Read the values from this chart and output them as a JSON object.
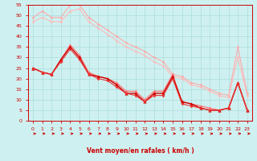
{
  "xlabel": "Vent moyen/en rafales ( km/h )",
  "background_color": "#cff0f0",
  "grid_color": "#aadddd",
  "xlim": [
    -0.5,
    23.5
  ],
  "ylim": [
    0,
    55
  ],
  "yticks": [
    0,
    5,
    10,
    15,
    20,
    25,
    30,
    35,
    40,
    45,
    50,
    55
  ],
  "xticks": [
    0,
    1,
    2,
    3,
    4,
    5,
    6,
    7,
    8,
    9,
    10,
    11,
    12,
    13,
    14,
    15,
    16,
    17,
    18,
    19,
    20,
    21,
    22,
    23
  ],
  "lines": [
    {
      "color": "#ffaaaa",
      "x": [
        0,
        1,
        2,
        3,
        4,
        5,
        6,
        7,
        8,
        9,
        10,
        11,
        12,
        13,
        14,
        15,
        16,
        17,
        18,
        19,
        20,
        21,
        22,
        23
      ],
      "y": [
        49,
        52,
        49,
        49,
        55,
        55,
        49,
        46,
        43,
        40,
        37,
        35,
        33,
        30,
        28,
        22,
        21,
        18,
        17,
        15,
        13,
        12,
        35,
        13
      ],
      "marker": "D",
      "markersize": 1.5,
      "linewidth": 0.8
    },
    {
      "color": "#ffbbbb",
      "x": [
        0,
        1,
        2,
        3,
        4,
        5,
        6,
        7,
        8,
        9,
        10,
        11,
        12,
        13,
        14,
        15,
        16,
        17,
        18,
        19,
        20,
        21,
        22,
        23
      ],
      "y": [
        47,
        49,
        47,
        47,
        52,
        53,
        47,
        44,
        41,
        38,
        35,
        33,
        31,
        28,
        26,
        21,
        20,
        17,
        16,
        14,
        12,
        11,
        30,
        12
      ],
      "marker": "D",
      "markersize": 1.5,
      "linewidth": 0.8
    },
    {
      "color": "#ff7777",
      "x": [
        0,
        1,
        2,
        3,
        4,
        5,
        6,
        7,
        8,
        9,
        10,
        11,
        12,
        13,
        14,
        15,
        16,
        17,
        18,
        19,
        20,
        21,
        22,
        23
      ],
      "y": [
        25,
        23,
        22,
        29,
        36,
        31,
        23,
        21,
        20,
        18,
        14,
        14,
        10,
        14,
        14,
        22,
        9,
        8,
        7,
        6,
        5,
        6,
        18,
        5
      ],
      "marker": "^",
      "markersize": 2.5,
      "linewidth": 0.9
    },
    {
      "color": "#cc0000",
      "x": [
        0,
        1,
        2,
        3,
        4,
        5,
        6,
        7,
        8,
        9,
        10,
        11,
        12,
        13,
        14,
        15,
        16,
        17,
        18,
        19,
        20,
        21,
        22,
        23
      ],
      "y": [
        25,
        23,
        22,
        29,
        35,
        30,
        22,
        21,
        20,
        17,
        13,
        13,
        9,
        13,
        13,
        21,
        9,
        8,
        6,
        5,
        5,
        6,
        18,
        5
      ],
      "marker": "^",
      "markersize": 2.5,
      "linewidth": 1.0
    },
    {
      "color": "#ee3333",
      "x": [
        0,
        1,
        2,
        3,
        4,
        5,
        6,
        7,
        8,
        9,
        10,
        11,
        12,
        13,
        14,
        15,
        16,
        17,
        18,
        19,
        20,
        21,
        22,
        23
      ],
      "y": [
        25,
        23,
        22,
        28,
        34,
        29,
        22,
        20,
        19,
        16,
        13,
        12,
        9,
        12,
        12,
        20,
        8,
        7,
        6,
        5,
        5,
        6,
        18,
        5
      ],
      "marker": "D",
      "markersize": 1.5,
      "linewidth": 0.8
    }
  ],
  "axis_color": "#cc0000",
  "tick_color": "#cc0000",
  "arrow_color": "#cc0000"
}
